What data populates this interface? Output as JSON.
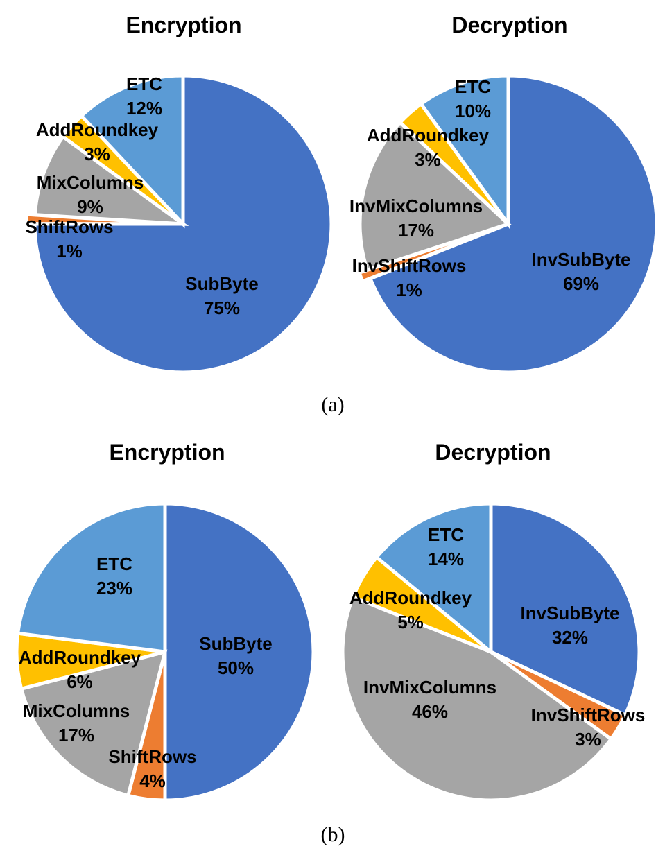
{
  "colors": {
    "SubByte": "#4472C4",
    "InvSubByte": "#4472C4",
    "ShiftRows": "#ED7D31",
    "InvShiftRows": "#ED7D31",
    "MixColumns": "#A5A5A5",
    "InvMixColumns": "#A5A5A5",
    "AddRoundkey": "#FFC000",
    "ETC": "#5B9BD5"
  },
  "captions": [
    "(a)",
    "(b)"
  ],
  "chart_data": [
    {
      "type": "pie",
      "panel": "(a)",
      "title": "Encryption",
      "slices": [
        {
          "label": "SubByte",
          "value": 75,
          "display": "75%"
        },
        {
          "label": "ShiftRows",
          "value": 1,
          "display": "1%"
        },
        {
          "label": "MixColumns",
          "value": 9,
          "display": "9%"
        },
        {
          "label": "AddRoundkey",
          "value": 3,
          "display": "3%"
        },
        {
          "label": "ETC",
          "value": 12,
          "display": "12%"
        }
      ]
    },
    {
      "type": "pie",
      "panel": "(a)",
      "title": "Decryption",
      "slices": [
        {
          "label": "InvSubByte",
          "value": 69,
          "display": "69%"
        },
        {
          "label": "InvShiftRows",
          "value": 1,
          "display": "1%"
        },
        {
          "label": "InvMixColumns",
          "value": 17,
          "display": "17%"
        },
        {
          "label": "AddRoundkey",
          "value": 3,
          "display": "3%"
        },
        {
          "label": "ETC",
          "value": 10,
          "display": "10%"
        }
      ]
    },
    {
      "type": "pie",
      "panel": "(b)",
      "title": "Encryption",
      "slices": [
        {
          "label": "SubByte",
          "value": 50,
          "display": "50%"
        },
        {
          "label": "ShiftRows",
          "value": 4,
          "display": "4%"
        },
        {
          "label": "MixColumns",
          "value": 17,
          "display": "17%"
        },
        {
          "label": "AddRoundkey",
          "value": 6,
          "display": "6%"
        },
        {
          "label": "ETC",
          "value": 23,
          "display": "23%"
        }
      ]
    },
    {
      "type": "pie",
      "panel": "(b)",
      "title": "Decryption",
      "slices": [
        {
          "label": "InvSubByte",
          "value": 32,
          "display": "32%"
        },
        {
          "label": "InvShiftRows",
          "value": 3,
          "display": "3%"
        },
        {
          "label": "InvMixColumns",
          "value": 46,
          "display": "46%"
        },
        {
          "label": "AddRoundkey",
          "value": 5,
          "display": "5%"
        },
        {
          "label": "ETC",
          "value": 14,
          "display": "14%"
        }
      ]
    }
  ]
}
